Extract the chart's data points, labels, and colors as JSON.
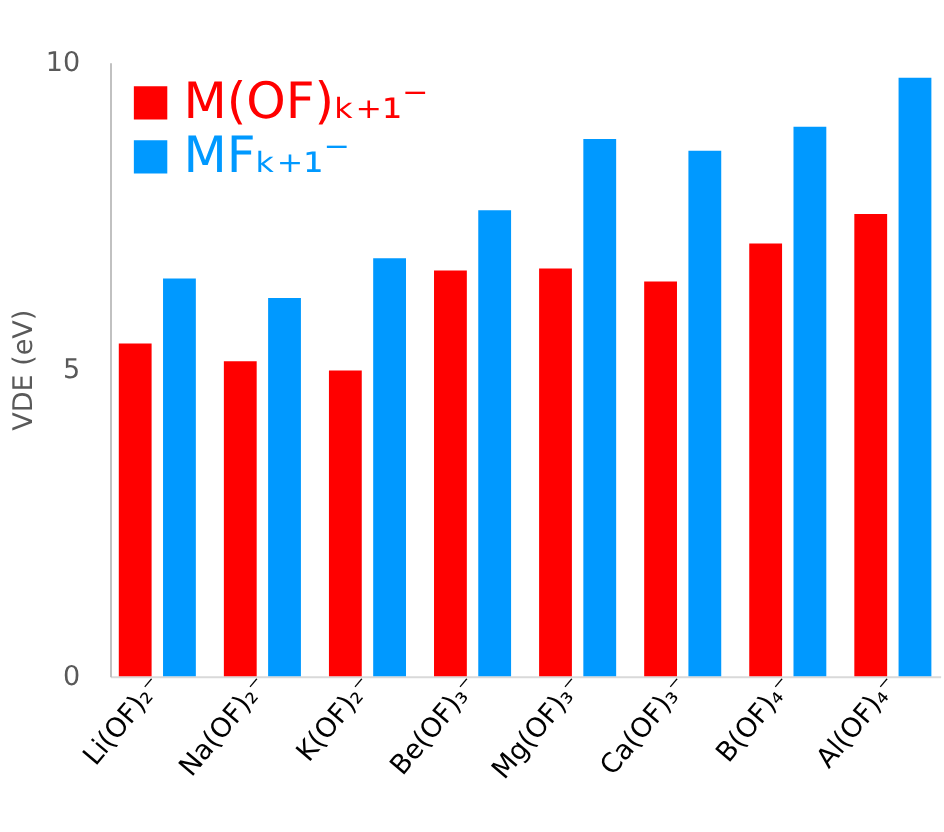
{
  "chart_data": {
    "type": "bar",
    "ylabel": "VDE (eV)",
    "categories": [
      "Li(OF)₂⁻",
      "Na(OF)₂⁻",
      "K(OF)₂⁻",
      "Be(OF)₃⁻",
      "Mg(OF)₃⁻",
      "Ca(OF)₃⁻",
      "B(OF)₄⁻",
      "Al(OF)₄⁻"
    ],
    "series": [
      {
        "name": "M(OF)ₖ₊₁⁻",
        "color": "#ff0000",
        "values": [
          5.42,
          5.13,
          4.98,
          6.61,
          6.64,
          6.43,
          7.05,
          7.53
        ]
      },
      {
        "name": "MFₖ₊₁⁻",
        "color": "#0099ff",
        "values": [
          6.48,
          6.16,
          6.81,
          7.59,
          8.75,
          8.56,
          8.95,
          9.75
        ]
      }
    ],
    "ylim": [
      0,
      10
    ],
    "yticks": [
      0,
      5,
      10
    ],
    "grid": false,
    "legend": "top left"
  }
}
